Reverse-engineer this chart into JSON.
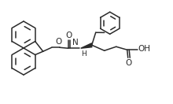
{
  "bg_color": "#ffffff",
  "line_color": "#2a2a2a",
  "lw": 1.1,
  "figsize": [
    2.2,
    1.32
  ],
  "dpi": 100,
  "xlim": [
    0,
    220
  ],
  "ylim": [
    0,
    132
  ]
}
